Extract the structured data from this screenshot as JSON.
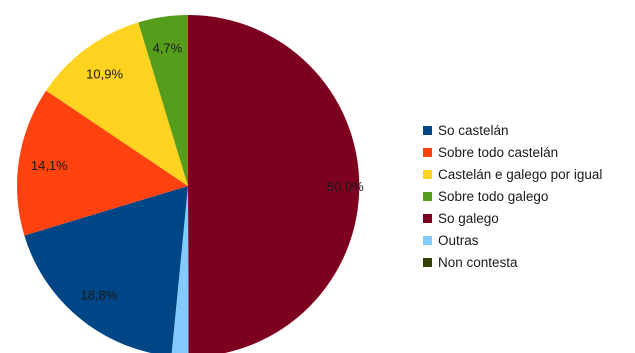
{
  "chart_data": {
    "type": "pie",
    "title": "",
    "categories": [
      "So castelán",
      "Sobre todo castelán",
      "Castelán e galego por igual",
      "Sobre todo galego",
      "So galego",
      "Outras",
      "Non contesta"
    ],
    "values": [
      18.8,
      14.1,
      10.9,
      4.7,
      50.0,
      1.6,
      0.0
    ],
    "value_labels": [
      "18,8%",
      "14,1%",
      "10,9%",
      "4,7%",
      "50,0%",
      "1,6%",
      ""
    ],
    "colors": [
      "#004586",
      "#ff420e",
      "#ffd320",
      "#579d1c",
      "#7e0021",
      "#83caff",
      "#314004"
    ],
    "start": "12 o'clock",
    "direction": "clockwise, starting with So galego",
    "legend_position": "right"
  }
}
